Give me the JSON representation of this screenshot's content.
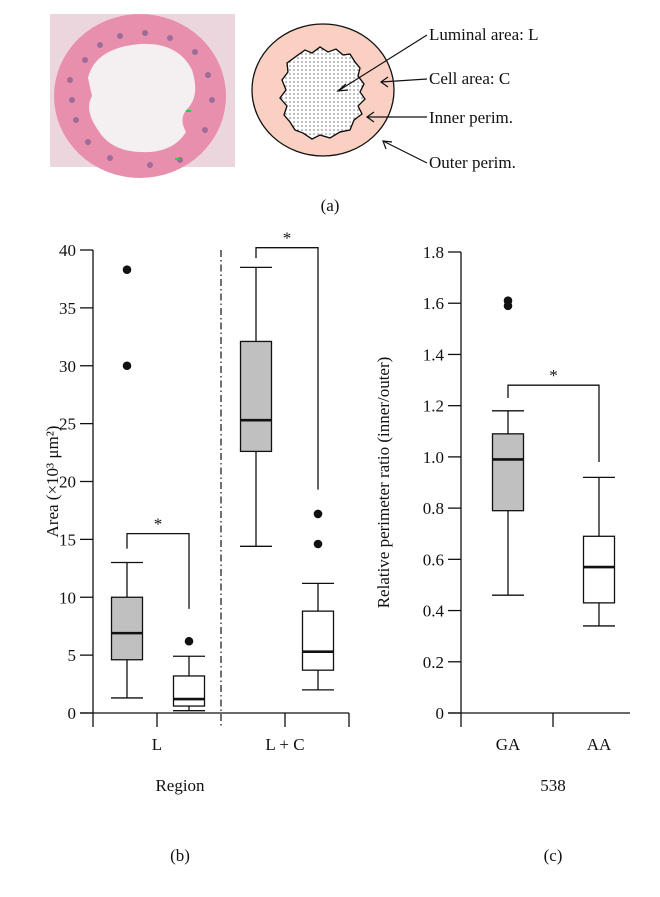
{
  "panel_a": {
    "caption": "(a)",
    "labels": [
      "Luminal area: L",
      "Cell area: C",
      "Inner perim.",
      "Outer perim."
    ],
    "colors": {
      "tissue": "#e98fae",
      "lumen": "#f4f0f2",
      "cell_area": "#f9d0c2"
    }
  },
  "chart_data": [
    {
      "type": "box",
      "panel": "(b)",
      "xlabel": "Region",
      "ylabel": "Area (×10³ μm²)",
      "ylim": [
        0,
        40
      ],
      "yticks": [
        0,
        5,
        10,
        15,
        20,
        25,
        30,
        35,
        40
      ],
      "categories": [
        "L",
        "L + C"
      ],
      "boxes": [
        {
          "category": "L",
          "fill": "#c0c0c0",
          "whisker_low": 1.3,
          "q1": 4.6,
          "median": 6.9,
          "q3": 10.0,
          "whisker_high": 13.0,
          "outliers": [
            38.3,
            30.0
          ]
        },
        {
          "category": "L",
          "fill": "#ffffff",
          "whisker_low": 0.2,
          "q1": 0.6,
          "median": 1.2,
          "q3": 3.2,
          "whisker_high": 4.9,
          "outliers": [
            6.2
          ]
        },
        {
          "category": "L + C",
          "fill": "#c0c0c0",
          "whisker_low": 14.4,
          "q1": 22.6,
          "median": 25.3,
          "q3": 32.1,
          "whisker_high": 38.5,
          "outliers": []
        },
        {
          "category": "L + C",
          "fill": "#ffffff",
          "whisker_low": 2.0,
          "q1": 3.7,
          "median": 5.3,
          "q3": 8.8,
          "whisker_high": 11.2,
          "outliers": [
            17.2,
            14.6
          ]
        }
      ],
      "significance": [
        {
          "from": 0,
          "to": 1,
          "level": 15.5,
          "from_end": 14.2,
          "to_end": 9.0,
          "label": "*"
        },
        {
          "from": 2,
          "to": 3,
          "level": 40.2,
          "from_end": 39.3,
          "to_end": 19.3,
          "label": "*"
        }
      ]
    },
    {
      "type": "box",
      "panel": "(c)",
      "xlabel": "538",
      "ylabel": "Relative perimeter ratio (inner/outer)",
      "ylim": [
        0,
        1.8
      ],
      "yticks": [
        "0",
        "0.2",
        "0.4",
        "0.6",
        "0.8",
        "1.0",
        "1.2",
        "1.4",
        "1.6",
        "1.8"
      ],
      "categories": [
        "GA",
        "AA"
      ],
      "boxes": [
        {
          "category": "GA",
          "fill": "#c0c0c0",
          "whisker_low": 0.46,
          "q1": 0.79,
          "median": 0.99,
          "q3": 1.09,
          "whisker_high": 1.18,
          "outliers": [
            1.61,
            1.59
          ]
        },
        {
          "category": "AA",
          "fill": "#ffffff",
          "whisker_low": 0.34,
          "q1": 0.43,
          "median": 0.57,
          "q3": 0.69,
          "whisker_high": 0.92,
          "outliers": []
        }
      ],
      "significance": [
        {
          "from": 0,
          "to": 1,
          "level": 1.28,
          "from_end": 1.23,
          "to_end": 0.98,
          "label": "*"
        }
      ]
    }
  ]
}
